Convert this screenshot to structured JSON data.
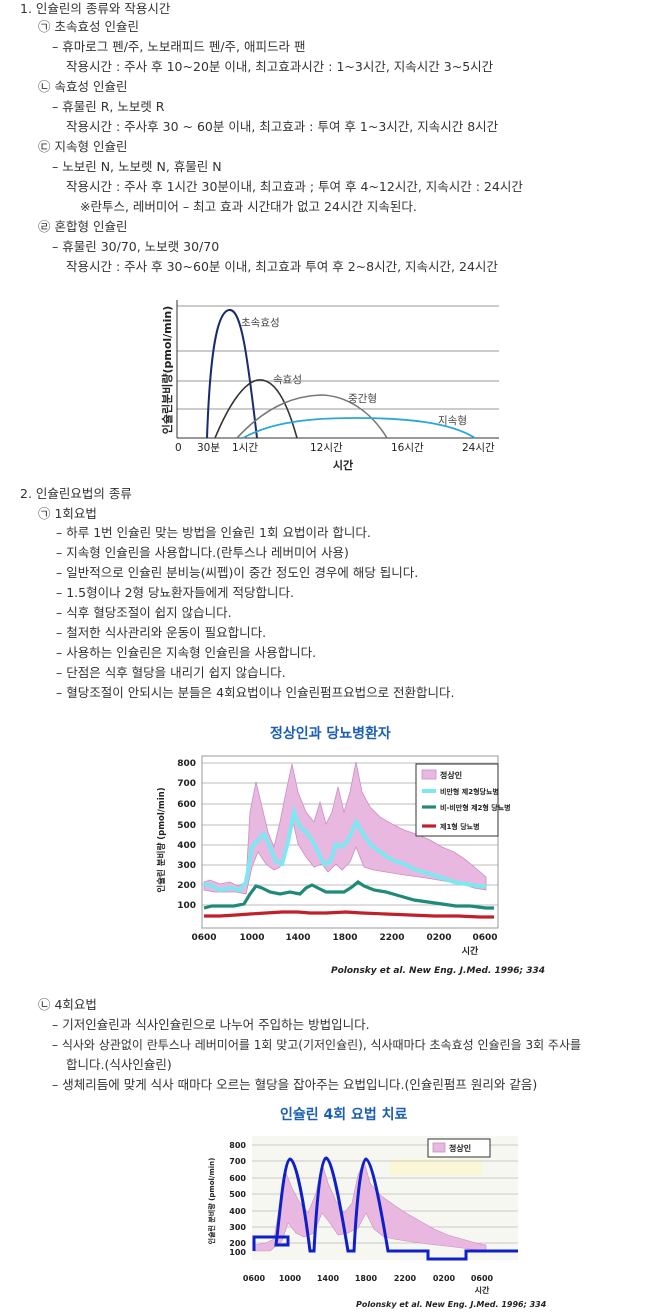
{
  "section1": {
    "title": "1. 인슐린의 종류와 작용시간",
    "lines": [
      "㉠ 초속효성 인슐린",
      "– 휴마로그 펜/주, 노보래피드 펜/주, 애피드라 팬",
      "작용시간 : 주사 후 10~20분 이내, 최고효과시간 : 1~3시간, 지속시간 3~5시간",
      "㉡ 속효성 인슐린",
      "– 휴물린 R, 노보렛 R",
      "작용시간 : 주사후 30 ~ 60분 이내, 최고효과 : 투여 후 1~3시간, 지속시간 8시간",
      "㉢ 지속형 인슐린",
      "– 노보린 N, 노보렛 N, 휴물린 N",
      "작용시간 : 주사 후 1시간 30분이내, 최고효과 ; 투여 후 4~12시간, 지속시간 : 24시간",
      "※란투스, 레버미어 – 최고 효과 시간대가 없고 24시간 지속된다.",
      "㉣ 혼합형 인슐린",
      "– 휴물린 30/70, 노보랫 30/70",
      "작용시간 : 주사 후 30~60분 이내, 최고효과 투여 후 2~8시간, 지속시간, 24시간"
    ]
  },
  "chart1": {
    "ylabel": "인슐린분비량(pmol/min)",
    "xlabel": "시간",
    "xticks": [
      "0",
      "30분",
      "1시간",
      "12시간",
      "16시간",
      "24시간"
    ],
    "curve_labels": [
      "초속효성",
      "속효성",
      "중간형",
      "지속형"
    ],
    "colors": {
      "rapid": "#1a2a6c",
      "short": "#333333",
      "intermediate": "#777777",
      "long": "#2aa6d8"
    }
  },
  "section2": {
    "title": "2. 인슐린요법의 종류",
    "method1_title": "㉠ 1회요법",
    "method1_lines": [
      "– 하루 1번 인슐린 맞는 방법을 인슐린 1회 요법이라 합니다.",
      "– 지속형 인슐린을 사용합니다.(란투스나 레버미어 사용)",
      "– 일반적으로 인슐린 분비능(씨펩)이 중간 정도인 경우에 해당 됩니다.",
      "– 1.5형이나 2형 당뇨환자들에게 적당합니다.",
      "– 식후 혈당조절이 쉽지 않습니다.",
      "– 철저한 식사관리와 운동이 필요합니다.",
      "– 사용하는 인슐린은 지속형 인슐린을 사용합니다.",
      "– 단점은 식후 혈당을 내리기 쉽지 않습니다.",
      "– 혈당조절이 안되시는 분들은 4회요법이나 인슐린펌프요법으로 전환합니다."
    ],
    "method4_title": "㉡ 4회요법",
    "method4_lines": [
      "– 기저인슐린과 식사인슐린으로 나누어 주입하는 방법입니다.",
      "– 식사와 상관없이 란투스나 레버미어를 1회 맞고(기저인슐린), 식사때마다 초속효성 인슐린을 3회 주사를",
      "합니다.(식사인슐린)",
      "– 생체리듬에 맞게 식사 때마다 오르는 혈당을 잡아주는 요법입니다.(인슐린펌프 원리와 같음)"
    ]
  },
  "chart2": {
    "title": "정상인과 당뇨병환자",
    "ylabel": "인슐린 분비량 (pmol/min)",
    "xlabel": "시간",
    "yticks": [
      "800",
      "700",
      "600",
      "500",
      "400",
      "300",
      "200",
      "100"
    ],
    "xticks": [
      "0600",
      "1000",
      "1400",
      "1800",
      "2200",
      "0200",
      "0600"
    ],
    "legend": [
      "정상인",
      "비만형 제2형당뇨병",
      "비-비만형 제2형 당뇨병",
      "제1형 당뇨병"
    ],
    "citation": "Polonsky et al. New Eng. J.Med. 1996; 334",
    "colors": {
      "normal": "#e8b8e0",
      "obese": "#7de8f2",
      "nonobese": "#1f8a78",
      "type1": "#c0202a"
    }
  },
  "chart3": {
    "title": "인슐린 4회 요법 치료",
    "ylabel": "인슐린 분비량 (pmol/min)",
    "xlabel": "시간",
    "yticks": [
      "800",
      "700",
      "600",
      "500",
      "400",
      "300",
      "200",
      "100"
    ],
    "xticks": [
      "0600",
      "1000",
      "1400",
      "1800",
      "2200",
      "0200",
      "0600"
    ],
    "legend": [
      "정상인"
    ],
    "citation": "Polonsky et al. New Eng. J.Med. 1996; 334",
    "colors": {
      "normal": "#e8b8e0",
      "therapy": "#1020c8"
    }
  }
}
